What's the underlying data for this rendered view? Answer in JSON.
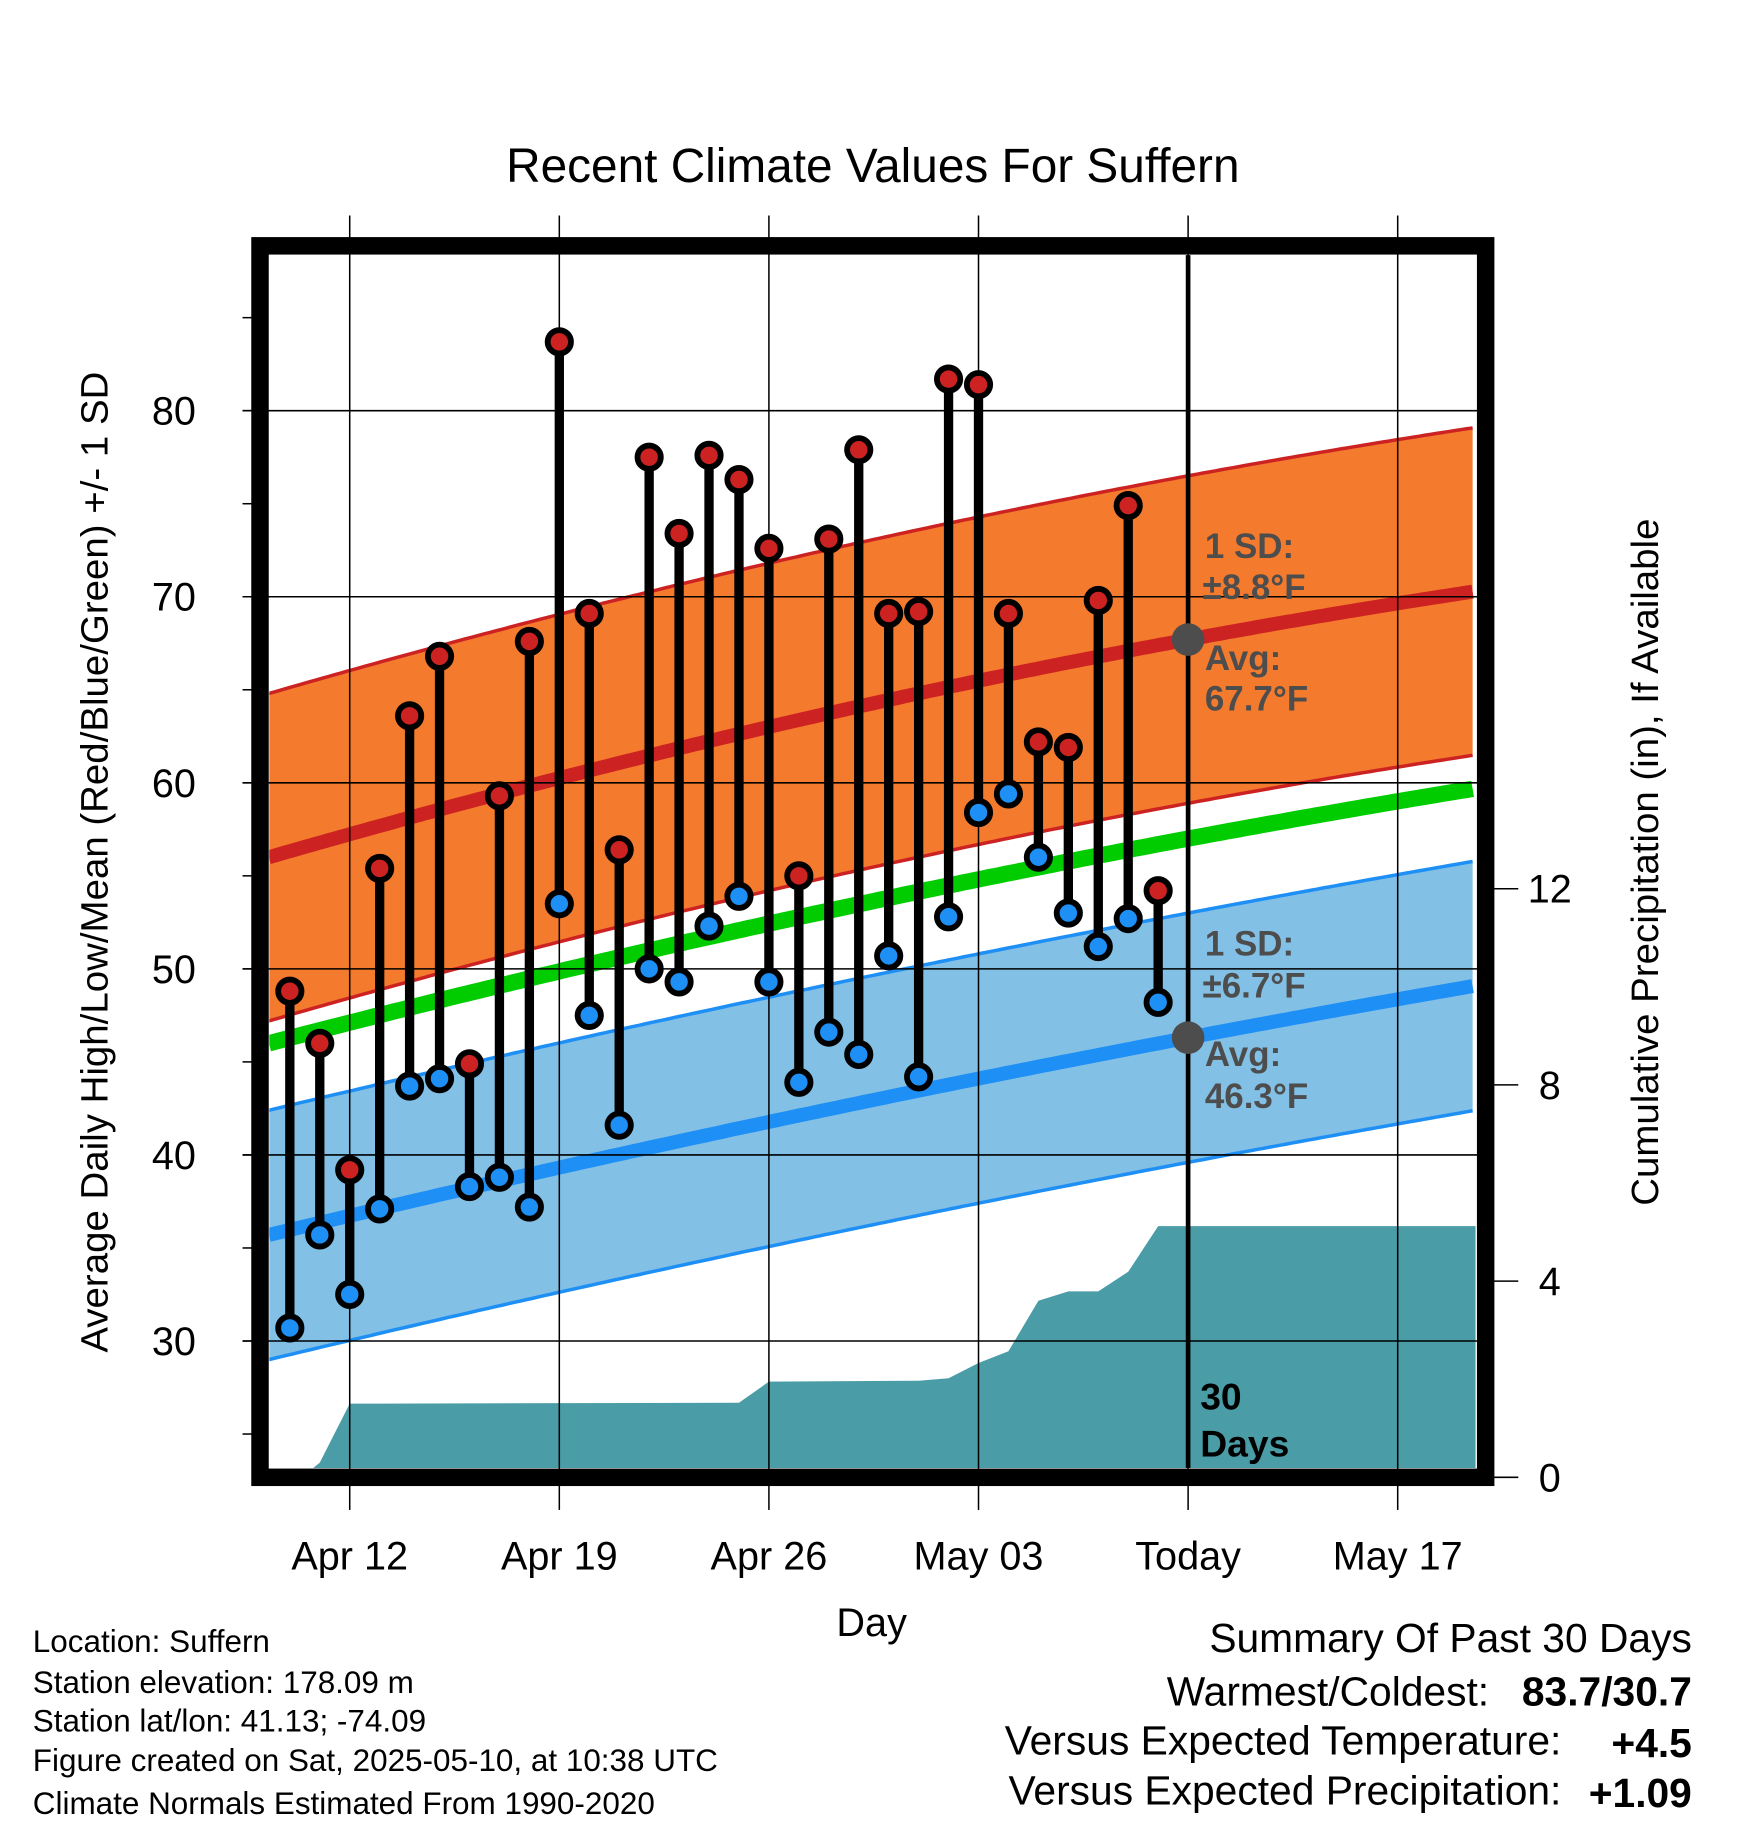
{
  "chart_data": {
    "type": "line",
    "title": "Recent Climate Values For Suffern",
    "xlabel": "Day",
    "ylabel": "Average Daily High/Low/Mean (Red/Blue/Green) +/- 1 SD",
    "y2label": "Cumulative Precipitation (in), If Available",
    "ylim": [
      23,
      89
    ],
    "y2lim": [
      0,
      15.7
    ],
    "yticks": [
      "30",
      "40",
      "50",
      "60",
      "70",
      "80"
    ],
    "y2ticks": [
      "0",
      "4",
      "8",
      "12"
    ],
    "xticks": [
      {
        "day": 12,
        "label": "Apr 12"
      },
      {
        "day": 19,
        "label": "Apr 19"
      },
      {
        "day": 26,
        "label": "Apr 26"
      },
      {
        "day": 33,
        "label": "May 03"
      },
      {
        "day": 40,
        "label": "Today"
      },
      {
        "day": 47,
        "label": "May 17"
      }
    ],
    "x_day_note": "day number counted from Mar 31 (Apr 1 = 1)",
    "days": [
      10,
      11,
      12,
      13,
      14,
      15,
      16,
      17,
      18,
      19,
      20,
      21,
      22,
      23,
      24,
      25,
      26,
      27,
      28,
      29,
      30,
      31,
      32,
      33,
      34,
      35,
      36,
      37,
      38,
      39
    ],
    "highs": [
      48.8,
      46.0,
      39.2,
      55.4,
      63.6,
      66.8,
      44.9,
      59.3,
      67.6,
      83.7,
      69.1,
      56.4,
      77.5,
      73.4,
      77.6,
      76.3,
      72.6,
      55.0,
      73.1,
      77.9,
      69.1,
      69.2,
      81.7,
      81.4,
      69.1,
      62.2,
      61.9,
      69.8,
      74.9,
      54.2
    ],
    "lows": [
      30.7,
      35.7,
      32.5,
      37.1,
      43.7,
      44.1,
      38.3,
      38.8,
      37.2,
      53.5,
      47.5,
      41.6,
      50.0,
      49.3,
      52.3,
      53.9,
      49.3,
      43.9,
      46.6,
      45.4,
      50.7,
      44.2,
      52.8,
      58.4,
      59.4,
      56.0,
      53.0,
      51.2,
      52.7,
      48.2
    ],
    "normals": {
      "days": [
        9.3,
        40,
        49.6
      ],
      "avg_high": [
        56.0,
        67.7,
        70.3
      ],
      "avg_low": [
        35.7,
        46.3,
        49.1
      ],
      "avg_mean": [
        46.0,
        57.0,
        59.7
      ],
      "sd_high": 8.8,
      "sd_low": 6.7
    },
    "precip_cumulative": {
      "days": [
        10.4,
        11,
        12,
        25,
        26,
        31,
        32,
        33,
        34,
        35,
        36,
        37,
        38,
        39,
        49.6
      ],
      "values": [
        0,
        0.3,
        1.5,
        1.52,
        1.95,
        1.97,
        2.02,
        2.33,
        2.57,
        3.6,
        3.79,
        3.79,
        4.19,
        5.12,
        5.12
      ]
    },
    "today_day": 40,
    "annotations": {
      "high_sd_label": "1 SD:",
      "high_sd_value": "±8.8°F",
      "high_avg_label": "Avg:",
      "high_avg_value": "67.7°F",
      "low_sd_label": "1 SD:",
      "low_sd_value": "±6.7°F",
      "low_avg_label": "Avg:",
      "low_avg_value": "46.3°F",
      "days_num": "30",
      "days_word": "Days"
    },
    "colors": {
      "high_band": "#f47a2d",
      "high_line": "#cd2222",
      "low_band": "#82c0e6",
      "low_line": "#1e8ff5",
      "mean_line": "#00cc00",
      "precip": "#4a9ca6",
      "annot": "#4d4d4d"
    }
  },
  "info": {
    "location": "Location: Suffern",
    "elevation": "Station elevation: 178.09 m",
    "latlon": "Station lat/lon: 41.13; -74.09",
    "created": "Figure created on Sat, 2025-05-10, at 10:38 UTC",
    "normals": "Climate Normals Estimated From 1990-2020"
  },
  "summary": {
    "title": "Summary Of Past 30 Days",
    "warmest_label": "Warmest/Coldest:",
    "warmest_value": "83.7/30.7",
    "temp_label": "Versus Expected Temperature:",
    "temp_value": "+4.5",
    "temp_color": "#cd2222",
    "precip_label": "Versus Expected Precipitation:",
    "precip_value": "+1.09",
    "precip_color": "#00cc00"
  }
}
